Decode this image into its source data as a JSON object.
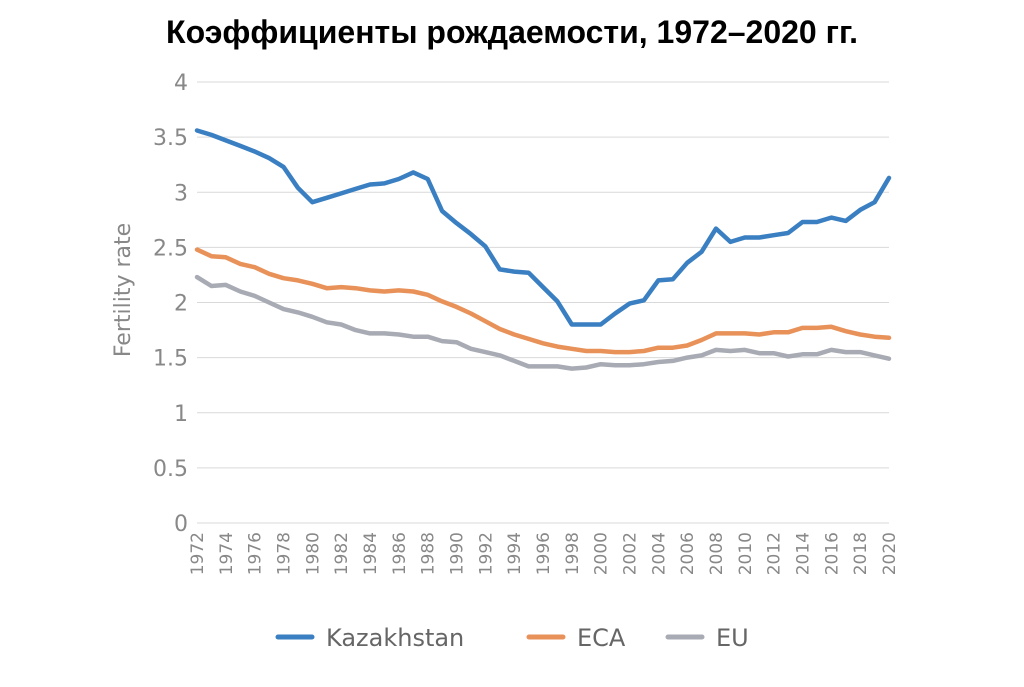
{
  "chart_data": {
    "type": "line",
    "title": "Коэффициенты рождаемости, 1972–2020 гг.",
    "xlabel": "",
    "ylabel": "Fertility rate",
    "ylim": [
      0,
      4
    ],
    "yticks": [
      "0",
      "0.5",
      "1",
      "1.5",
      "2",
      "2.5",
      "3",
      "3.5",
      "4"
    ],
    "xlim": [
      1972,
      2020
    ],
    "xtick_labels": [
      "1972",
      "1974",
      "1976",
      "1978",
      "1980",
      "1982",
      "1984",
      "1986",
      "1988",
      "1990",
      "1992",
      "1994",
      "1996",
      "1998",
      "2000",
      "2002",
      "2004",
      "2006",
      "2008",
      "2010",
      "2012",
      "2014",
      "2016",
      "2018",
      "2020"
    ],
    "grid": true,
    "legend_position": "bottom",
    "x": [
      1972,
      1973,
      1974,
      1975,
      1976,
      1977,
      1978,
      1979,
      1980,
      1981,
      1982,
      1983,
      1984,
      1985,
      1986,
      1987,
      1988,
      1989,
      1990,
      1991,
      1992,
      1993,
      1994,
      1995,
      1996,
      1997,
      1998,
      1999,
      2000,
      2001,
      2002,
      2003,
      2004,
      2005,
      2006,
      2007,
      2008,
      2009,
      2010,
      2011,
      2012,
      2013,
      2014,
      2015,
      2016,
      2017,
      2018,
      2019,
      2020
    ],
    "series": [
      {
        "name": "Kazakhstan",
        "color": "#3a7fc1",
        "values": [
          3.56,
          3.52,
          3.47,
          3.42,
          3.37,
          3.31,
          3.23,
          3.04,
          2.91,
          2.95,
          2.99,
          3.03,
          3.07,
          3.08,
          3.12,
          3.18,
          3.12,
          2.83,
          2.72,
          2.62,
          2.51,
          2.3,
          2.28,
          2.27,
          2.14,
          2.01,
          1.8,
          1.8,
          1.8,
          1.9,
          1.99,
          2.02,
          2.2,
          2.21,
          2.36,
          2.46,
          2.67,
          2.55,
          2.59,
          2.59,
          2.61,
          2.63,
          2.73,
          2.73,
          2.77,
          2.74,
          2.84,
          2.91,
          3.13
        ]
      },
      {
        "name": "ECA",
        "color": "#e8925a",
        "values": [
          2.48,
          2.42,
          2.41,
          2.35,
          2.32,
          2.26,
          2.22,
          2.2,
          2.17,
          2.13,
          2.14,
          2.13,
          2.11,
          2.1,
          2.11,
          2.1,
          2.07,
          2.01,
          1.96,
          1.9,
          1.83,
          1.76,
          1.71,
          1.67,
          1.63,
          1.6,
          1.58,
          1.56,
          1.56,
          1.55,
          1.55,
          1.56,
          1.59,
          1.59,
          1.61,
          1.66,
          1.72,
          1.72,
          1.72,
          1.71,
          1.73,
          1.73,
          1.77,
          1.77,
          1.78,
          1.74,
          1.71,
          1.69,
          1.68
        ]
      },
      {
        "name": "EU",
        "color": "#a8abb4",
        "values": [
          2.23,
          2.15,
          2.16,
          2.1,
          2.06,
          2.0,
          1.94,
          1.91,
          1.87,
          1.82,
          1.8,
          1.75,
          1.72,
          1.72,
          1.71,
          1.69,
          1.69,
          1.65,
          1.64,
          1.58,
          1.55,
          1.52,
          1.47,
          1.42,
          1.42,
          1.42,
          1.4,
          1.41,
          1.44,
          1.43,
          1.43,
          1.44,
          1.46,
          1.47,
          1.5,
          1.52,
          1.57,
          1.56,
          1.57,
          1.54,
          1.54,
          1.51,
          1.53,
          1.53,
          1.57,
          1.55,
          1.55,
          1.52,
          1.49
        ]
      }
    ]
  }
}
